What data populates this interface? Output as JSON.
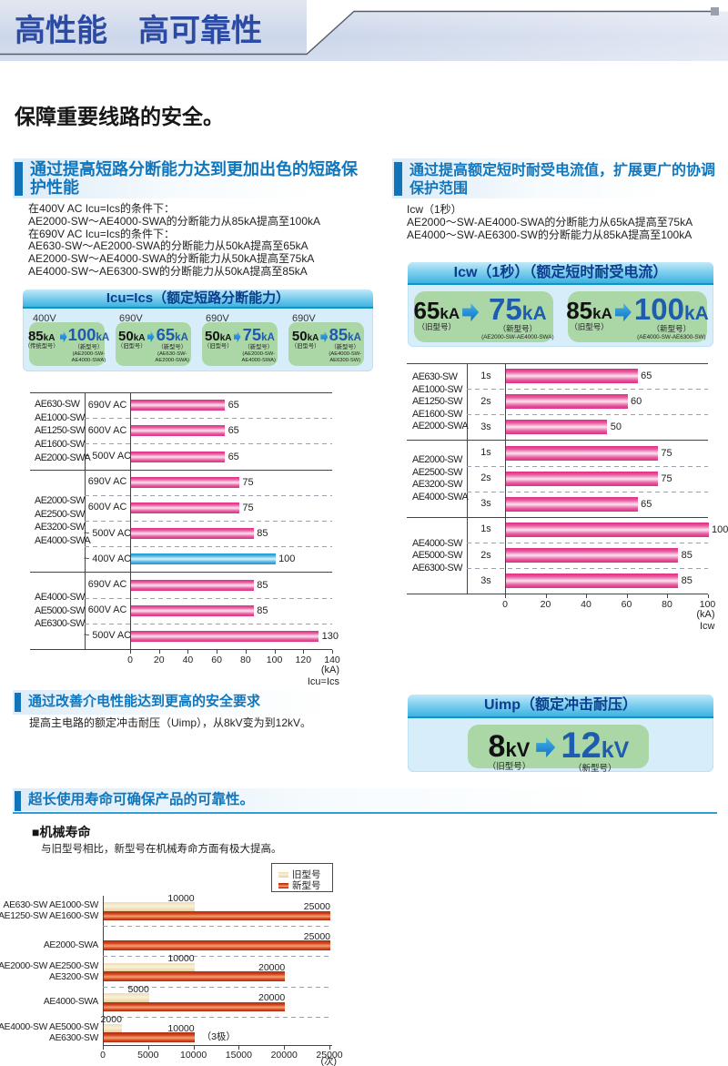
{
  "colors": {
    "banner_title": "#2b4aa3",
    "section_blue": "#1176bb",
    "box_title_navy": "#0c3c8c",
    "cyan_header": "#3db2e2",
    "badge_green": "#abd6a6",
    "bar_pink": "#dd2d85",
    "bar_blue": "#28a4dc",
    "bar_red": "#cd3a1c",
    "bar_beige": "#f3e6c0",
    "new_value_blue": "#1d5cae"
  },
  "banner": {
    "title": "高性能　高可靠性"
  },
  "intro": {
    "subtitle": "保障重要线路的安全。"
  },
  "sections": {
    "breaking": {
      "heading_lines": [
        "通过提高短路分断能力达到更加出色的短路保",
        "护性能"
      ],
      "body_lines": [
        "在400V AC Icu=Ics的条件下：",
        "AE2000-SW～AE4000-SWA的分断能力从85kA提高至100kA",
        "在690V AC Icu=Ics的条件下：",
        "AE630-SW～AE2000-SWA的分断能力从50kA提高至65kA",
        "AE2000-SW～AE4000-SWA的分断能力从50kA提高至75kA",
        "AE4000-SW～AE6300-SW的分断能力从50kA提高至85kA"
      ],
      "box": {
        "title": "Icu=Ics（额定短路分断能力）",
        "badges": [
          {
            "voltage": "400V",
            "old": "85",
            "old_unit": "kA",
            "old_label": "（传统型号）",
            "new": "100",
            "new_unit": "kA",
            "new_label": "（新型号）",
            "model_lines": [
              "(AE2000-SW-",
              "AE4000-SWA)"
            ]
          },
          {
            "voltage": "690V",
            "old": "50",
            "old_unit": "kA",
            "old_label": "（旧型号）",
            "new": "65",
            "new_unit": "kA",
            "new_label": "（新型号）",
            "model_lines": [
              "(AE630-SW-",
              "AE2000-SWA)"
            ]
          },
          {
            "voltage": "690V",
            "old": "50",
            "old_unit": "kA",
            "old_label": "（旧型号）",
            "new": "75",
            "new_unit": "kA",
            "new_label": "（新型号）",
            "model_lines": [
              "(AE2000-SW-",
              "AE4000-SWA)"
            ]
          },
          {
            "voltage": "690V",
            "old": "50",
            "old_unit": "kA",
            "old_label": "（旧型号）",
            "new": "85",
            "new_unit": "kA",
            "new_label": "（新型号）",
            "model_lines": [
              "(AE4000-SW-",
              "AE6300-SW)"
            ]
          }
        ]
      }
    },
    "withstand": {
      "heading_lines": [
        "通过提高额定短时耐受电流值，扩展更广的协调",
        "保护范围"
      ],
      "body_lines": [
        "Icw（1秒）",
        "AE2000～SW-AE4000-SWA的分断能力从65kA提高至75kA",
        "AE4000～SW-AE6300-SW的分断能力从85kA提高至100kA"
      ],
      "box": {
        "title": "Icw（1秒）（额定短时耐受电流）",
        "badges": [
          {
            "old": "65",
            "old_unit": "kA",
            "old_label": "（旧型号）",
            "new": "75",
            "new_unit": "kA",
            "new_label": "（新型号）",
            "model_lines": [
              "(AE2000-SW-AE4000-SWA)"
            ]
          },
          {
            "old": "85",
            "old_unit": "kA",
            "old_label": "（旧型号）",
            "new": "100",
            "new_unit": "kA",
            "new_label": "（新型号）",
            "model_lines": [
              "(AE4000-SW-AE6300-SW)"
            ]
          }
        ]
      }
    },
    "dielectric": {
      "heading": "通过改善介电性能达到更高的安全要求",
      "body_lines": [
        "提高主电路的额定冲击耐压（Uimp），从8kV变为到12kV。"
      ],
      "box": {
        "title": "Uimp（额定冲击耐压）",
        "badges": [
          {
            "old": "8",
            "old_unit": "kV",
            "old_label": "（旧型号）",
            "new": "12",
            "new_unit": "kV",
            "new_label": "（新型号）",
            "model_lines": []
          }
        ]
      }
    },
    "life": {
      "heading": "超长使用寿命可确保产品的可靠性。",
      "subheading": "■机械寿命",
      "caption": "与旧型号相比，新型号在机械寿命方面有极大提高。"
    }
  },
  "chart_data": [
    {
      "id": "icu",
      "type": "bar",
      "title": "Icu=Ics（额定短路分断能力）",
      "xlabel": "(kA)",
      "axis_caption": "Icu=Ics",
      "xlim": [
        0,
        140
      ],
      "xticks": [
        0,
        20,
        40,
        60,
        80,
        100,
        120,
        140
      ],
      "groups": [
        {
          "models": [
            "AE630-SW",
            "AE1000-SW",
            "AE1250-SW",
            "AE1600-SW",
            "AE2000-SWA"
          ],
          "rows": [
            {
              "label": "690V AC",
              "value": 65,
              "color": "pink"
            },
            {
              "label": "600V AC",
              "value": 65,
              "color": "pink"
            },
            {
              "label": "~ 500V AC",
              "value": 65,
              "color": "pink"
            }
          ]
        },
        {
          "models": [
            "AE2000-SW",
            "AE2500-SW",
            "AE3200-SW",
            "AE4000-SWA"
          ],
          "rows": [
            {
              "label": "690V AC",
              "value": 75,
              "color": "pink"
            },
            {
              "label": "600V AC",
              "value": 75,
              "color": "pink"
            },
            {
              "label": "~ 500V AC",
              "value": 85,
              "color": "pink"
            },
            {
              "label": "~ 400V AC",
              "value": 100,
              "color": "blue"
            }
          ]
        },
        {
          "models": [
            "AE4000-SW",
            "AE5000-SW",
            "AE6300-SW"
          ],
          "rows": [
            {
              "label": "690V AC",
              "value": 85,
              "color": "pink"
            },
            {
              "label": "600V AC",
              "value": 85,
              "color": "pink"
            },
            {
              "label": "~ 500V AC",
              "value": 130,
              "color": "pink"
            }
          ]
        }
      ]
    },
    {
      "id": "icw",
      "type": "bar",
      "title": "Icw（1秒）（额定短时耐受电流）",
      "xlabel": "(kA)",
      "axis_caption": "Icw",
      "xlim": [
        0,
        100
      ],
      "xticks": [
        0,
        20,
        40,
        60,
        80,
        100
      ],
      "groups": [
        {
          "models": [
            "AE630-SW",
            "AE1000-SW",
            "AE1250-SW",
            "AE1600-SW",
            "AE2000-SWA"
          ],
          "rows": [
            {
              "label": "1s",
              "value": 65,
              "color": "pink"
            },
            {
              "label": "2s",
              "value": 60,
              "color": "pink"
            },
            {
              "label": "3s",
              "value": 50,
              "color": "pink"
            }
          ]
        },
        {
          "models": [
            "AE2000-SW",
            "AE2500-SW",
            "AE3200-SW",
            "AE4000-SWA"
          ],
          "rows": [
            {
              "label": "1s",
              "value": 75,
              "color": "pink"
            },
            {
              "label": "2s",
              "value": 75,
              "color": "pink"
            },
            {
              "label": "3s",
              "value": 65,
              "color": "pink"
            }
          ]
        },
        {
          "models": [
            "AE4000-SW",
            "AE5000-SW",
            "AE6300-SW"
          ],
          "rows": [
            {
              "label": "1s",
              "value": 100,
              "color": "pink"
            },
            {
              "label": "2s",
              "value": 85,
              "color": "pink"
            },
            {
              "label": "3s",
              "value": 85,
              "color": "pink"
            }
          ]
        }
      ]
    },
    {
      "id": "life",
      "type": "bar",
      "title": "机械寿命",
      "xlabel": "(次)",
      "xlim": [
        0,
        25000
      ],
      "xticks": [
        0,
        5000,
        10000,
        15000,
        20000,
        25000
      ],
      "legend": [
        {
          "label": "旧型号",
          "color": "beige"
        },
        {
          "label": "新型号",
          "color": "red"
        }
      ],
      "groups": [
        {
          "label_lines": [
            "AE630-SW AE1000-SW",
            "AE1250-SW AE1600-SW"
          ],
          "old": 10000,
          "new": 25000
        },
        {
          "label_lines": [
            "AE2000-SWA"
          ],
          "old": null,
          "new": 25000
        },
        {
          "label_lines": [
            "AE2000-SW AE2500-SW",
            "AE3200-SW"
          ],
          "old": 10000,
          "new": 20000
        },
        {
          "label_lines": [
            "AE4000-SWA"
          ],
          "old": 5000,
          "new": 20000
        },
        {
          "label_lines": [
            "AE4000-SW AE5000-SW",
            "AE6300-SW"
          ],
          "old": 2000,
          "new": 10000,
          "note": "（3极）"
        }
      ]
    }
  ]
}
